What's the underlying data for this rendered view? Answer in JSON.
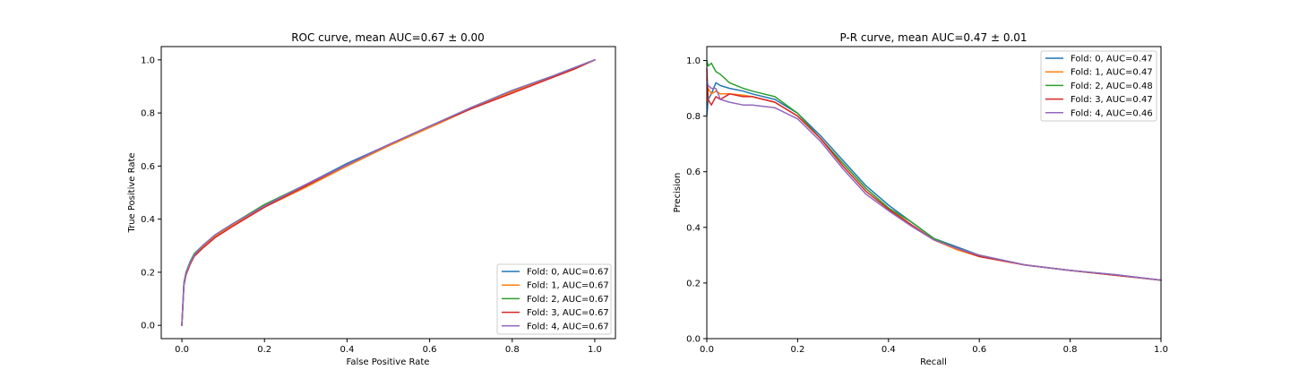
{
  "chart_data": [
    {
      "type": "line",
      "title": "ROC curve, mean AUC=0.67 ± 0.00",
      "xlabel": "False Positive Rate",
      "ylabel": "True Positive Rate",
      "xlim": [
        -0.05,
        1.05
      ],
      "ylim": [
        -0.05,
        1.05
      ],
      "xticks": [
        0.0,
        0.2,
        0.4,
        0.6,
        0.8,
        1.0
      ],
      "yticks": [
        0.0,
        0.2,
        0.4,
        0.6,
        0.8,
        1.0
      ],
      "grid": false,
      "legend_position": "lower-right",
      "series": [
        {
          "name": "Fold: 0, AUC=0.67",
          "color": "#1f77b4",
          "x": [
            0,
            0.005,
            0.01,
            0.02,
            0.03,
            0.05,
            0.08,
            0.12,
            0.2,
            0.3,
            0.4,
            0.5,
            0.6,
            0.7,
            0.8,
            0.9,
            0.95,
            1.0
          ],
          "y": [
            0,
            0.16,
            0.2,
            0.24,
            0.27,
            0.3,
            0.34,
            0.38,
            0.45,
            0.53,
            0.61,
            0.68,
            0.75,
            0.82,
            0.885,
            0.94,
            0.97,
            1.0
          ]
        },
        {
          "name": "Fold: 1, AUC=0.67",
          "color": "#ff7f0e",
          "x": [
            0,
            0.005,
            0.01,
            0.02,
            0.03,
            0.05,
            0.08,
            0.12,
            0.2,
            0.3,
            0.4,
            0.5,
            0.6,
            0.7,
            0.8,
            0.9,
            0.95,
            1.0
          ],
          "y": [
            0,
            0.155,
            0.195,
            0.235,
            0.265,
            0.295,
            0.335,
            0.375,
            0.445,
            0.52,
            0.6,
            0.675,
            0.745,
            0.815,
            0.88,
            0.935,
            0.965,
            1.0
          ]
        },
        {
          "name": "Fold: 2, AUC=0.67",
          "color": "#2ca02c",
          "x": [
            0,
            0.005,
            0.01,
            0.02,
            0.03,
            0.05,
            0.08,
            0.12,
            0.2,
            0.3,
            0.4,
            0.5,
            0.6,
            0.7,
            0.8,
            0.9,
            0.95,
            1.0
          ],
          "y": [
            0,
            0.16,
            0.2,
            0.24,
            0.27,
            0.3,
            0.34,
            0.38,
            0.455,
            0.53,
            0.605,
            0.68,
            0.75,
            0.82,
            0.885,
            0.94,
            0.97,
            1.0
          ]
        },
        {
          "name": "Fold: 3, AUC=0.67",
          "color": "#d62728",
          "x": [
            0,
            0.005,
            0.01,
            0.02,
            0.03,
            0.05,
            0.08,
            0.12,
            0.2,
            0.3,
            0.4,
            0.5,
            0.6,
            0.7,
            0.8,
            0.9,
            0.95,
            1.0
          ],
          "y": [
            0,
            0.15,
            0.19,
            0.23,
            0.26,
            0.29,
            0.33,
            0.37,
            0.445,
            0.525,
            0.605,
            0.68,
            0.75,
            0.815,
            0.875,
            0.935,
            0.965,
            1.0
          ]
        },
        {
          "name": "Fold: 4, AUC=0.67",
          "color": "#9467bd",
          "x": [
            0,
            0.005,
            0.01,
            0.02,
            0.03,
            0.05,
            0.08,
            0.12,
            0.2,
            0.3,
            0.4,
            0.5,
            0.6,
            0.7,
            0.8,
            0.9,
            0.95,
            1.0
          ],
          "y": [
            0,
            0.155,
            0.195,
            0.235,
            0.265,
            0.3,
            0.34,
            0.38,
            0.45,
            0.53,
            0.605,
            0.68,
            0.75,
            0.82,
            0.885,
            0.94,
            0.97,
            1.0
          ]
        }
      ]
    },
    {
      "type": "line",
      "title": "P-R curve, mean AUC=0.47 ± 0.01",
      "xlabel": "Recall",
      "ylabel": "Precision",
      "xlim": [
        0.0,
        1.0
      ],
      "ylim": [
        0.0,
        1.05
      ],
      "xticks": [
        0.0,
        0.2,
        0.4,
        0.6,
        0.8,
        1.0
      ],
      "yticks": [
        0.0,
        0.2,
        0.4,
        0.6,
        0.8,
        1.0
      ],
      "grid": false,
      "legend_position": "upper-right",
      "series": [
        {
          "name": "Fold: 0, AUC=0.47",
          "color": "#1f77b4",
          "x": [
            0,
            0.003,
            0.01,
            0.02,
            0.03,
            0.05,
            0.08,
            0.1,
            0.15,
            0.2,
            0.25,
            0.3,
            0.35,
            0.4,
            0.45,
            0.5,
            0.55,
            0.6,
            0.7,
            0.8,
            0.9,
            1.0
          ],
          "y": [
            0.8,
            0.86,
            0.88,
            0.92,
            0.91,
            0.9,
            0.89,
            0.88,
            0.86,
            0.81,
            0.73,
            0.64,
            0.55,
            0.48,
            0.42,
            0.36,
            0.33,
            0.3,
            0.265,
            0.245,
            0.23,
            0.21
          ]
        },
        {
          "name": "Fold: 1, AUC=0.47",
          "color": "#ff7f0e",
          "x": [
            0,
            0.003,
            0.01,
            0.02,
            0.03,
            0.05,
            0.08,
            0.1,
            0.15,
            0.2,
            0.25,
            0.3,
            0.35,
            0.4,
            0.45,
            0.5,
            0.55,
            0.6,
            0.7,
            0.8,
            0.9,
            1.0
          ],
          "y": [
            0.85,
            0.9,
            0.88,
            0.89,
            0.88,
            0.88,
            0.875,
            0.87,
            0.85,
            0.8,
            0.72,
            0.63,
            0.54,
            0.47,
            0.41,
            0.355,
            0.32,
            0.295,
            0.265,
            0.245,
            0.228,
            0.21
          ]
        },
        {
          "name": "Fold: 2, AUC=0.48",
          "color": "#2ca02c",
          "x": [
            0,
            0.003,
            0.01,
            0.02,
            0.03,
            0.05,
            0.08,
            0.1,
            0.15,
            0.2,
            0.25,
            0.3,
            0.35,
            0.4,
            0.45,
            0.5,
            0.55,
            0.6,
            0.7,
            0.8,
            0.9,
            1.0
          ],
          "y": [
            1.0,
            0.98,
            0.99,
            0.96,
            0.95,
            0.92,
            0.9,
            0.89,
            0.87,
            0.81,
            0.72,
            0.63,
            0.54,
            0.47,
            0.42,
            0.36,
            0.325,
            0.3,
            0.265,
            0.245,
            0.228,
            0.21
          ]
        },
        {
          "name": "Fold: 3, AUC=0.47",
          "color": "#d62728",
          "x": [
            0,
            0.003,
            0.01,
            0.02,
            0.03,
            0.05,
            0.08,
            0.1,
            0.15,
            0.2,
            0.25,
            0.3,
            0.35,
            0.4,
            0.45,
            0.5,
            0.55,
            0.6,
            0.7,
            0.8,
            0.9,
            1.0
          ],
          "y": [
            0.97,
            0.86,
            0.84,
            0.87,
            0.86,
            0.88,
            0.87,
            0.87,
            0.85,
            0.8,
            0.72,
            0.62,
            0.53,
            0.465,
            0.41,
            0.355,
            0.325,
            0.295,
            0.265,
            0.245,
            0.228,
            0.21
          ]
        },
        {
          "name": "Fold: 4, AUC=0.46",
          "color": "#9467bd",
          "x": [
            0,
            0.003,
            0.01,
            0.02,
            0.03,
            0.05,
            0.08,
            0.1,
            0.15,
            0.2,
            0.25,
            0.3,
            0.35,
            0.4,
            0.45,
            0.5,
            0.55,
            0.6,
            0.7,
            0.8,
            0.9,
            1.0
          ],
          "y": [
            0.93,
            0.91,
            0.9,
            0.9,
            0.86,
            0.85,
            0.84,
            0.84,
            0.83,
            0.79,
            0.71,
            0.61,
            0.52,
            0.46,
            0.405,
            0.355,
            0.325,
            0.3,
            0.265,
            0.245,
            0.23,
            0.21
          ]
        }
      ]
    }
  ]
}
